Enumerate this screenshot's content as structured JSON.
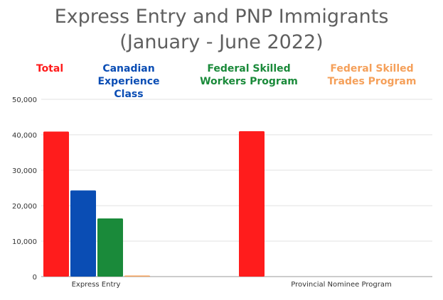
{
  "chart_data": {
    "type": "bar",
    "title": "Express Entry and PNP Immigrants",
    "subtitle": "(January - June 2022)",
    "categories": [
      "Express Entry",
      "Provincial Nominee Program"
    ],
    "series": [
      {
        "name": "Total",
        "color": "#ff1c1c",
        "values": [
          40900,
          41000
        ]
      },
      {
        "name": "Canadian Experience Class",
        "color": "#0a4db4",
        "values": [
          24300,
          0
        ]
      },
      {
        "name": "Federal Skilled Workers Program",
        "color": "#1a8a3a",
        "values": [
          16400,
          0
        ]
      },
      {
        "name": "Federal Skilled Trades Program",
        "color": "#f5a05a",
        "values": [
          300,
          0
        ]
      }
    ],
    "ylim": [
      0,
      50000
    ],
    "yticks": [
      0,
      10000,
      20000,
      30000,
      40000,
      50000
    ],
    "ytick_labels": [
      "0",
      "10,000",
      "20,000",
      "30,000",
      "40,000",
      "50,000"
    ],
    "grid": true,
    "legend_position": "top"
  }
}
